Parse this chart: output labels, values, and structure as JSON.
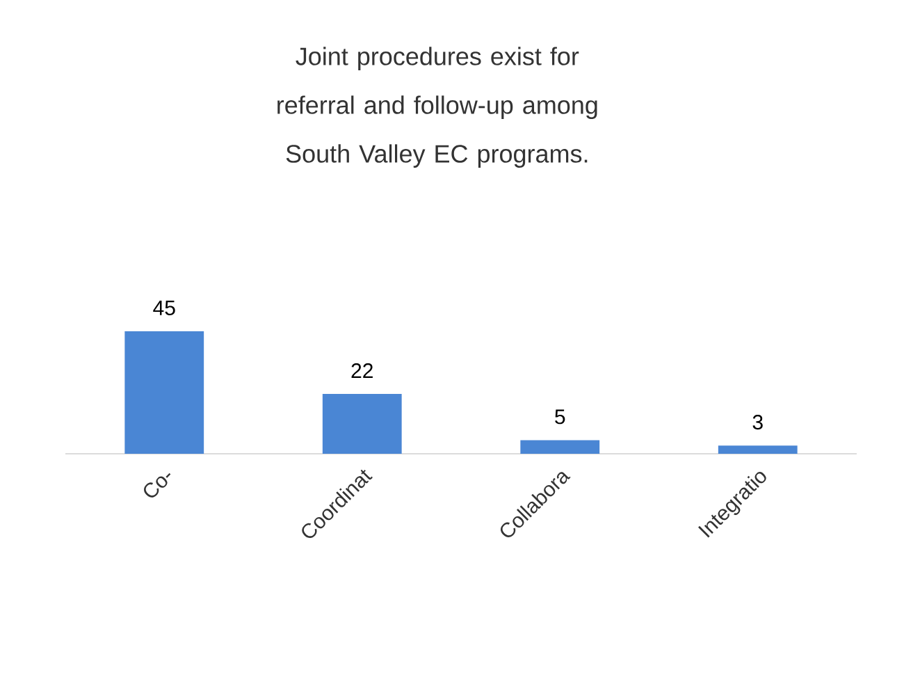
{
  "chart_data": {
    "type": "bar",
    "title": "Joint procedures exist for referral and follow-up among South Valley EC programs.",
    "categories": [
      "Co-",
      "Coordinat",
      "Collabora",
      "Integratio"
    ],
    "values": [
      45,
      22,
      5,
      3
    ],
    "color": "#4a86d4",
    "data_labels": true
  }
}
